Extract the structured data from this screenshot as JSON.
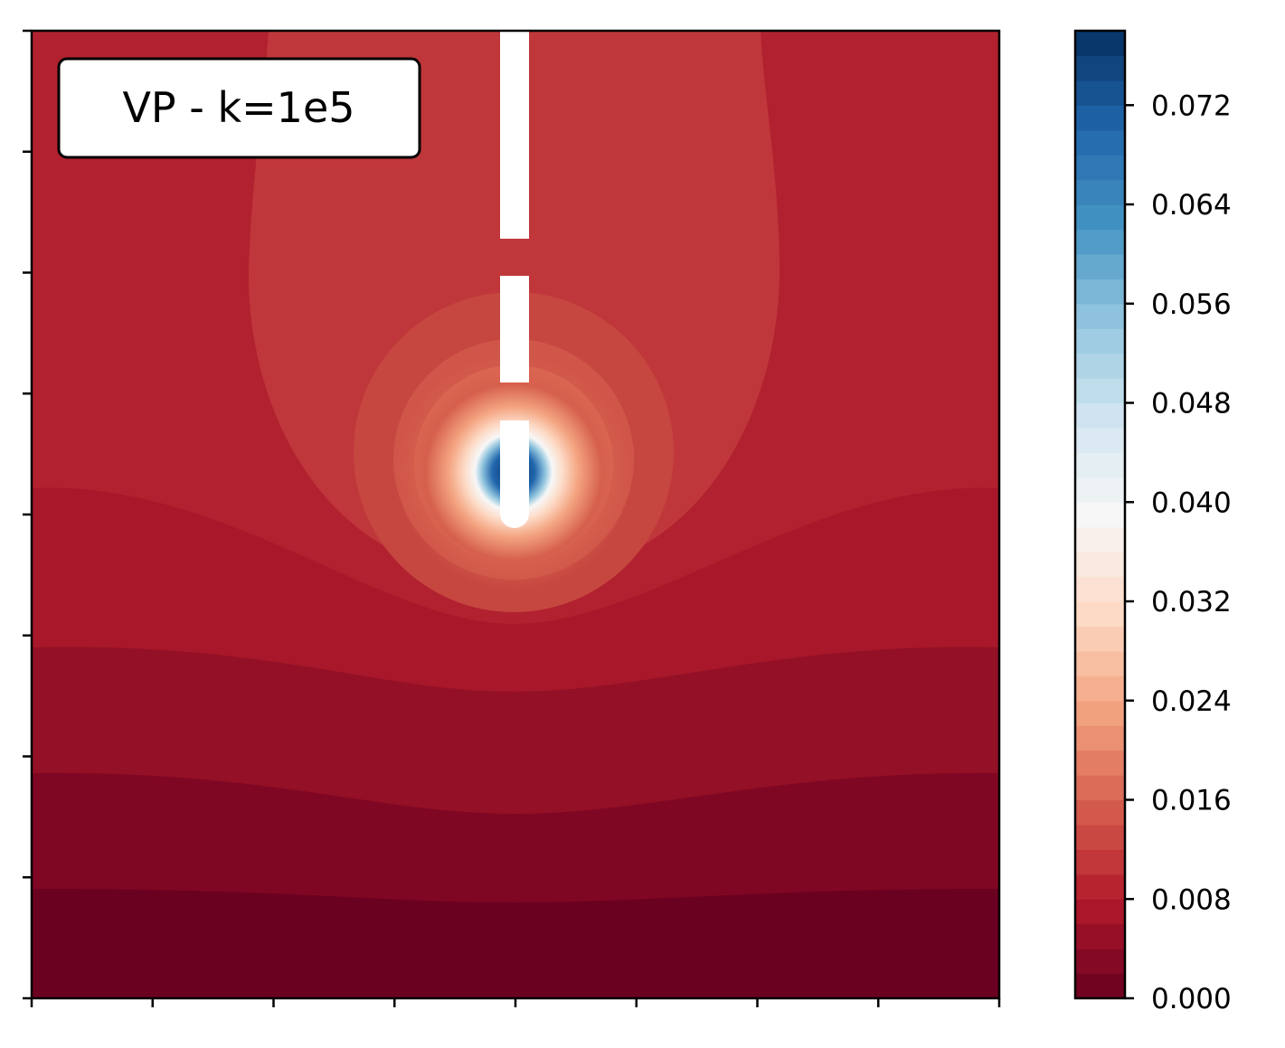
{
  "chart_data": {
    "type": "heatmap",
    "title": "VP - k=1e5",
    "xlabel": "",
    "ylabel": "",
    "x_ticks_labeled": false,
    "y_ticks_labeled": false,
    "x_tick_count": 9,
    "y_tick_count": 9,
    "colormap": "RdBu",
    "colorbar": {
      "range": [
        0.0,
        0.078
      ],
      "levels": 39,
      "ticks": [
        0.0,
        0.008,
        0.016,
        0.024,
        0.032,
        0.04,
        0.048,
        0.056,
        0.064,
        0.072
      ],
      "tick_labels": [
        "0.000",
        "0.008",
        "0.016",
        "0.024",
        "0.032",
        "0.040",
        "0.048",
        "0.056",
        "0.064",
        "0.072"
      ]
    },
    "field_description_values": {
      "background_bands_top_to_bottom": [
        0.009,
        0.008,
        0.006,
        0.004,
        0.002
      ],
      "peak_value_at_tip": 0.078
    },
    "legend": "none",
    "grid": false
  },
  "colors": {
    "axes_edge": "#000000",
    "title_box_fill": "#ffffff",
    "title_box_edge": "#000000",
    "gap": "#ffffff"
  }
}
